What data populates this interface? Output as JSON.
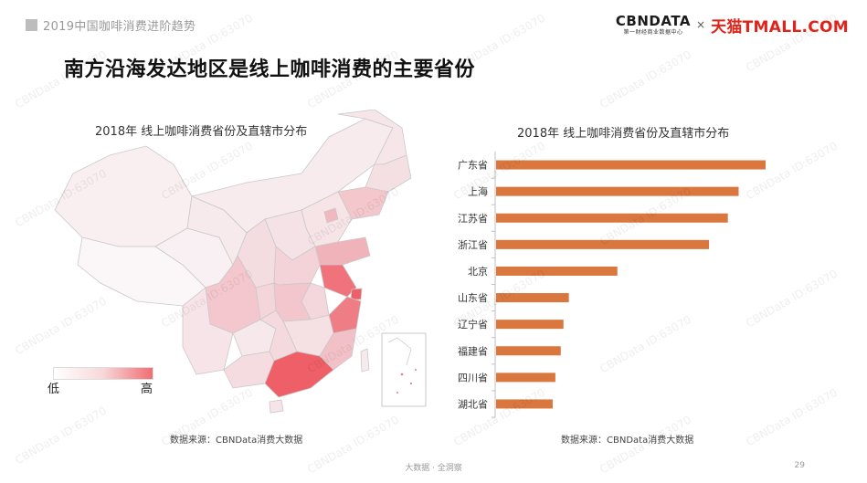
{
  "header": {
    "breadcrumb": "2019中国咖啡消费进阶趋势",
    "logo_cbn": "CBNDATA",
    "logo_cbn_sub": "第一财经商业数据中心",
    "logo_times": "×",
    "logo_tmall": "天猫TMALL.COM"
  },
  "headline": "南方沿海发达地区是线上咖啡消费的主要省份",
  "map": {
    "title": "2018年 线上咖啡消费省份及直辖市分布",
    "legend_low": "低",
    "legend_high": "高",
    "colors": {
      "low": "#ffffff",
      "mid": "#f8d7d9",
      "high": "#f06d73"
    }
  },
  "chart_data": {
    "type": "bar",
    "orientation": "horizontal",
    "title": "2018年 线上咖啡消费省份及直辖市分布",
    "categories": [
      "广东省",
      "上海",
      "江苏省",
      "浙江省",
      "北京",
      "山东省",
      "辽宁省",
      "福建省",
      "四川省",
      "湖北省"
    ],
    "values": [
      100,
      90,
      86,
      79,
      45,
      27,
      25,
      24,
      22,
      21
    ],
    "xlim": [
      0,
      100
    ],
    "grid": false,
    "bar_color": "#d9773f",
    "axis_labels_shown": false
  },
  "sources": {
    "left": "数据来源：CBNData消费大数据",
    "right": "数据来源：CBNData消费大数据"
  },
  "footer": {
    "text": "大数据 · 全洞察",
    "page": "29"
  },
  "watermark": "CBNData ID:63070"
}
